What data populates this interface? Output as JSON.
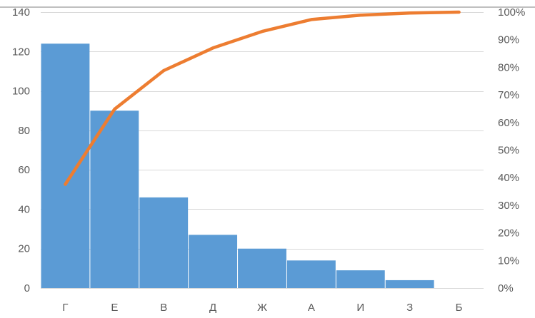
{
  "chart_data": {
    "type": "bar",
    "categories": [
      "Г",
      "Е",
      "В",
      "Д",
      "Ж",
      "А",
      "И",
      "З",
      "Б"
    ],
    "series": [
      {
        "type": "bar",
        "color": "#5B9BD5",
        "axis": "left",
        "values": [
          124,
          90,
          46,
          27,
          20,
          14,
          9,
          4,
          0
        ]
      },
      {
        "type": "line",
        "color": "#ED7D31",
        "axis": "right",
        "values": [
          37.6,
          64.8,
          78.8,
          87.0,
          93.0,
          97.3,
          98.9,
          99.7,
          100
        ]
      }
    ],
    "y_left": {
      "ylim": [
        0,
        140
      ],
      "ticks": [
        0,
        20,
        40,
        60,
        80,
        100,
        120,
        140
      ]
    },
    "y_right": {
      "ylim": [
        0,
        100
      ],
      "ticks": [
        0,
        10,
        20,
        30,
        40,
        50,
        60,
        70,
        80,
        90,
        100
      ],
      "tick_labels": [
        "0%",
        "10%",
        "20%",
        "30%",
        "40%",
        "50%",
        "60%",
        "70%",
        "80%",
        "90%",
        "100%"
      ]
    },
    "grid": true,
    "legend": "none",
    "title": "",
    "xlabel": "",
    "ylabel": ""
  }
}
